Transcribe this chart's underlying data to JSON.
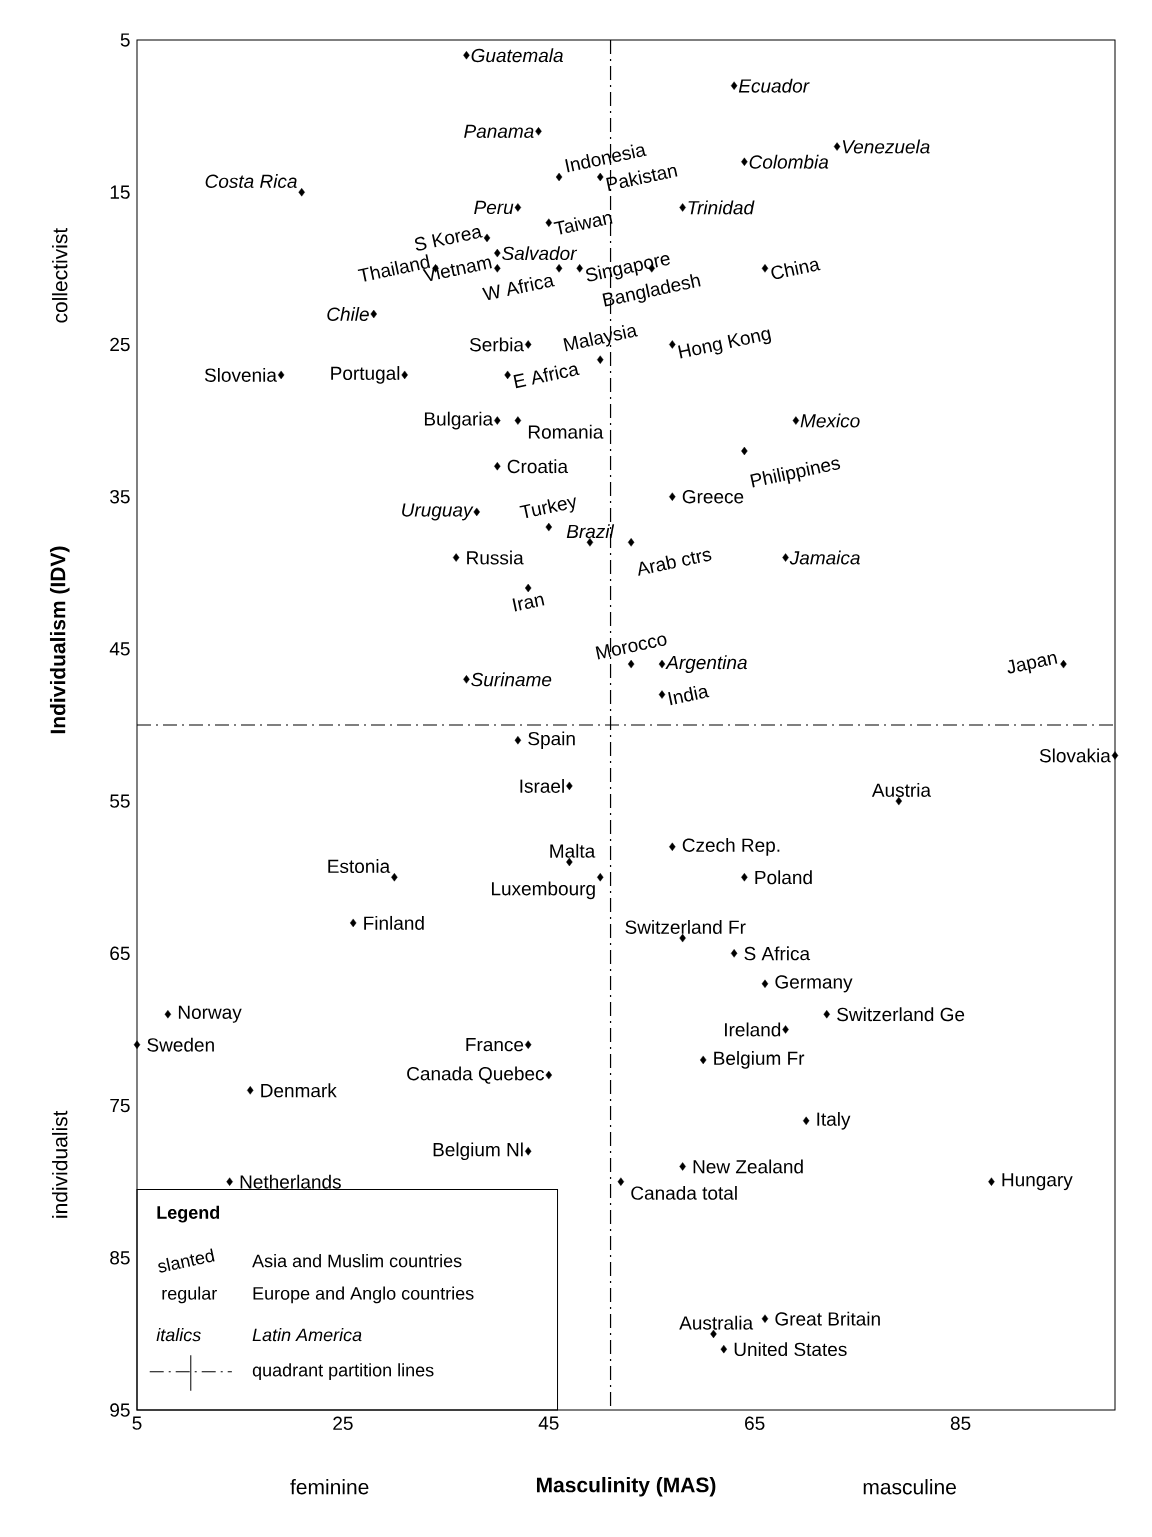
{
  "chart_data": {
    "type": "scatter",
    "xlabel": "Masculinity (MAS)",
    "ylabel": "Individualism (IDV)",
    "legend_title": "Legend",
    "marker": "diamond",
    "xlim": [
      5,
      100
    ],
    "xticks": [
      5,
      25,
      45,
      65,
      85
    ],
    "ylim": [
      95,
      5
    ],
    "yticks": [
      5,
      15,
      25,
      35,
      45,
      55,
      65,
      75,
      85,
      95
    ],
    "grid": false,
    "annotations": [
      "feminine",
      "masculine",
      "collectivist",
      "individualist",
      "slanted",
      "regular",
      "italics",
      "Asia and Muslim countries",
      "Europe and Anglo countries",
      "Latin America",
      "quadrant partition lines"
    ],
    "ref_lines": [
      {
        "axis": "x",
        "value": 51,
        "line_style": "dashdot",
        "color": "#000000"
      },
      {
        "axis": "y",
        "value": 50,
        "line_style": "dashdot",
        "color": "#000000"
      }
    ],
    "series": [
      {
        "color": "#000000",
        "x": [
          46,
          50,
          45,
          39,
          48,
          55,
          66,
          34,
          40,
          46,
          50,
          57,
          41,
          64,
          45,
          53,
          43,
          53,
          56,
          95
        ],
        "values": [
          14,
          14,
          17,
          18,
          20,
          20,
          20,
          20,
          20,
          20,
          26,
          25,
          27,
          32,
          37,
          38,
          41,
          46,
          48,
          46
        ],
        "value_labels": [
          "Indonesia",
          "Pakistan",
          "Taiwan",
          "S Korea",
          "Singapore",
          "Bangladesh",
          "China",
          "Thailand",
          "Vietnam",
          "W Africa",
          "Malaysia",
          "Hong Kong",
          "E Africa",
          "Philippines",
          "Turkey",
          "Arab ctrs",
          "Iran",
          "Morocco",
          "India",
          "Japan"
        ]
      },
      {
        "color": "#000000",
        "x": [
          43,
          19,
          31,
          40,
          42,
          40,
          57,
          36,
          42,
          100,
          47,
          79,
          47,
          57,
          30,
          50,
          64,
          26,
          58,
          63,
          66,
          72,
          8,
          68,
          5,
          43,
          16,
          45,
          60,
          70,
          43,
          58,
          14,
          88,
          52,
          61,
          66,
          62
        ],
        "values": [
          25,
          27,
          27,
          30,
          30,
          33,
          35,
          39,
          51,
          52,
          54,
          55,
          59,
          58,
          60,
          60,
          60,
          63,
          64,
          65,
          67,
          69,
          69,
          70,
          71,
          71,
          74,
          73,
          72,
          76,
          78,
          79,
          80,
          80,
          80,
          90,
          89,
          91
        ],
        "value_labels": [
          "Serbia",
          "Slovenia",
          "Portugal",
          "Bulgaria",
          "Romania",
          "Croatia",
          "Greece",
          "Russia",
          "Spain",
          "Slovakia",
          "Israel",
          "Austria",
          "Malta",
          "Czech Rep.",
          "Estonia",
          "Luxembourg",
          "Poland",
          "Finland",
          "Switzerland Fr",
          "S Africa",
          "Germany",
          "Switzerland Ge",
          "Norway",
          "Ireland",
          "Sweden",
          "France",
          "Denmark",
          "Canada Quebec",
          "Belgium Fr",
          "Italy",
          "Belgium Nl",
          "New Zealand",
          "Netherlands",
          "Hungary",
          "Canada total",
          "Australia",
          "Great Britain",
          "United States"
        ]
      },
      {
        "color": "#000000",
        "x": [
          37,
          63,
          44,
          73,
          64,
          21,
          42,
          58,
          40,
          28,
          69,
          38,
          68,
          56,
          37,
          49
        ],
        "values": [
          6,
          8,
          11,
          12,
          13,
          15,
          16,
          16,
          19,
          23,
          30,
          36,
          39,
          46,
          47,
          38
        ],
        "value_labels": [
          "Guatemala",
          "Ecuador",
          "Panama",
          "Venezuela",
          "Colombia",
          "Costa Rica",
          "Peru",
          "Trinidad",
          "Salvador",
          "Chile",
          "Mexico",
          "Uruguay",
          "Jamaica",
          "Argentina",
          "Suriname",
          "Brazil"
        ]
      }
    ]
  }
}
